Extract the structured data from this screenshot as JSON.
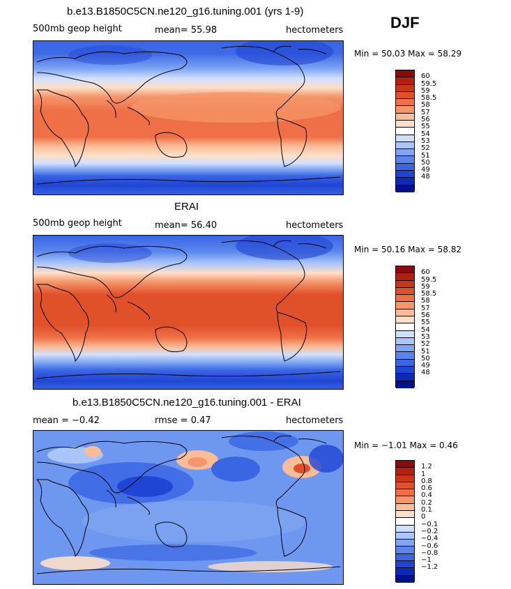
{
  "season": "DJF",
  "panels": [
    {
      "title": "b.e13.B1850C5CN.ne120_g16.tuning.001 (yrs 1-9)",
      "left_label": "500mb geop height",
      "center_label": "mean=  55.98",
      "right_label": "hectometers",
      "minmax": "Min =  50.03 Max =  58.29",
      "colorbar": {
        "colors": [
          "#8c0a0f",
          "#b2200f",
          "#cc3618",
          "#e0512a",
          "#ef7046",
          "#f5966a",
          "#fabd98",
          "#fde0c8",
          "#ffffff",
          "#cfe0ff",
          "#a9c5fb",
          "#7fa6f2",
          "#5986ec",
          "#3a66e4",
          "#1f45d4",
          "#0c2ab8",
          "#02108c"
        ],
        "labels": [
          "60",
          "59.5",
          "59",
          "58.5",
          "58",
          "57",
          "56",
          "55",
          "54",
          "53",
          "52",
          "51",
          "50",
          "49",
          "48"
        ]
      }
    },
    {
      "title": "ERAI",
      "left_label": "500mb geop height",
      "center_label": "mean=  56.40",
      "right_label": "hectometers",
      "minmax": "Min =  50.16 Max =  58.82",
      "colorbar": {
        "colors": [
          "#8c0a0f",
          "#b2200f",
          "#cc3618",
          "#e0512a",
          "#ef7046",
          "#f5966a",
          "#fabd98",
          "#fde0c8",
          "#ffffff",
          "#cfe0ff",
          "#a9c5fb",
          "#7fa6f2",
          "#5986ec",
          "#3a66e4",
          "#1f45d4",
          "#0c2ab8",
          "#02108c"
        ],
        "labels": [
          "60",
          "59.5",
          "59",
          "58.5",
          "58",
          "57",
          "56",
          "55",
          "54",
          "53",
          "52",
          "51",
          "50",
          "49",
          "48"
        ]
      }
    },
    {
      "title": "b.e13.B1850C5CN.ne120_g16.tuning.001 - ERAI",
      "left_label": "mean =  −0.42",
      "center_label": "rmse =   0.47",
      "right_label": "hectometers",
      "minmax": "Min =  −1.01 Max =   0.46",
      "colorbar": {
        "colors": [
          "#8c0a0f",
          "#b2200f",
          "#cc3618",
          "#e0512a",
          "#ef7046",
          "#f5966a",
          "#fabd98",
          "#fde0c8",
          "#ffffff",
          "#cfe0ff",
          "#a9c5fb",
          "#7fa6f2",
          "#5986ec",
          "#3a66e4",
          "#1f45d4",
          "#0c2ab8",
          "#02108c"
        ],
        "labels": [
          "1.2",
          "1",
          "0.8",
          "0.6",
          "0.4",
          "0.2",
          "0.1",
          "0",
          "−0.1",
          "−0.2",
          "−0.4",
          "−0.6",
          "−0.8",
          "−1",
          "−1.2"
        ]
      }
    }
  ]
}
